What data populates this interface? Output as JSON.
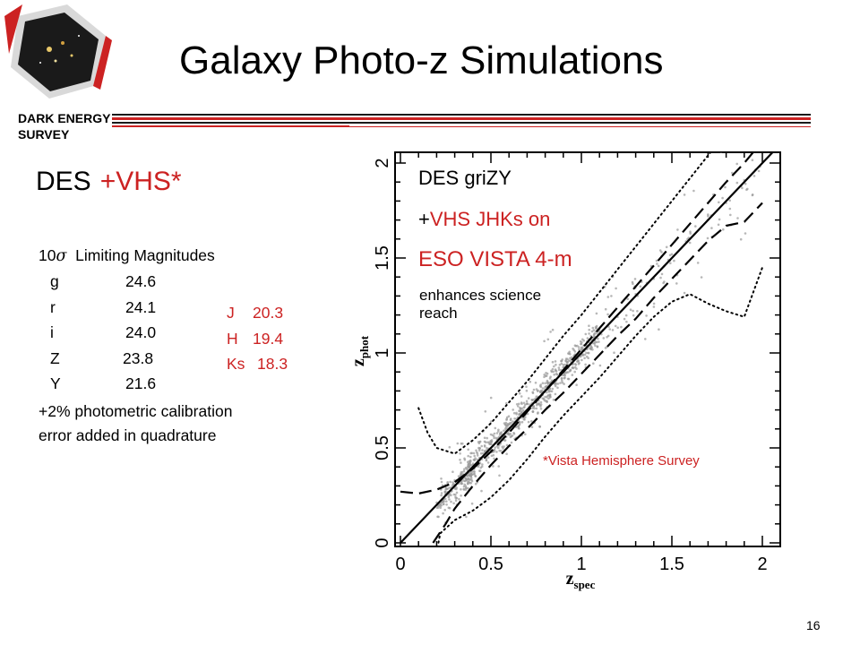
{
  "logo": {
    "line1": "DARK ENERGY",
    "line2": "SURVEY"
  },
  "title": "Galaxy Photo-z Simulations",
  "left": {
    "des_label": "DES",
    "vhs_label": "+VHS*",
    "limits_prefix": "10",
    "sigma": "σ",
    "limits_title": "Limiting Magnitudes",
    "bands": [
      {
        "band": "g",
        "mag": "24.6"
      },
      {
        "band": "r",
        "mag": "24.1"
      },
      {
        "band": "i",
        "mag": "24.0"
      },
      {
        "band": "Z",
        "mag": "23.8"
      },
      {
        "band": "Y",
        "mag": "21.6"
      }
    ],
    "ir_bands": [
      {
        "band": "J",
        "mag": "20.3"
      },
      {
        "band": "H",
        "mag": "19.4"
      },
      {
        "band": "Ks",
        "mag": "18.3"
      }
    ],
    "calib_line1": "+2% photometric calibration",
    "calib_line2": "error added in quadrature"
  },
  "annotations": {
    "line1": "DES griZY",
    "line2_plus": "+",
    "line2_rest": "VHS JHKs on",
    "line3": "ESO VISTA 4-m",
    "line4": "enhances science",
    "line5": "reach",
    "footnote": "*Vista Hemisphere Survey"
  },
  "page_number": "16",
  "colors": {
    "accent_red": "#cc2222",
    "points": "#999999"
  },
  "chart_data": {
    "type": "scatter",
    "xlabel": "z",
    "xlabel_sub": "spec",
    "ylabel": "z",
    "ylabel_sub": "phot",
    "xlim": [
      0,
      2.1
    ],
    "ylim": [
      0,
      2.1
    ],
    "xticks": [
      {
        "v": 0,
        "label": "0"
      },
      {
        "v": 0.5,
        "label": "0.5"
      },
      {
        "v": 1,
        "label": "1"
      },
      {
        "v": 1.5,
        "label": "1.5"
      },
      {
        "v": 2,
        "label": "2"
      }
    ],
    "yticks": [
      {
        "v": 0,
        "label": "0"
      },
      {
        "v": 0.5,
        "label": "0.5"
      },
      {
        "v": 1,
        "label": "1"
      },
      {
        "v": 1.5,
        "label": "1.5"
      },
      {
        "v": 2,
        "label": "2"
      }
    ],
    "lines": [
      {
        "name": "one-to-one",
        "style": "solid",
        "points": [
          [
            0,
            0
          ],
          [
            2.1,
            2.1
          ]
        ]
      },
      {
        "name": "upper-dashed",
        "style": "dashed",
        "points": [
          [
            0,
            0.27
          ],
          [
            0.1,
            0.26
          ],
          [
            0.2,
            0.28
          ],
          [
            0.3,
            0.32
          ],
          [
            0.4,
            0.39
          ],
          [
            0.5,
            0.48
          ],
          [
            0.6,
            0.58
          ],
          [
            0.7,
            0.69
          ],
          [
            0.8,
            0.8
          ],
          [
            0.9,
            0.91
          ],
          [
            1,
            1.02
          ],
          [
            1.1,
            1.13
          ],
          [
            1.2,
            1.24
          ],
          [
            1.3,
            1.35
          ],
          [
            1.4,
            1.46
          ],
          [
            1.5,
            1.57
          ],
          [
            1.6,
            1.68
          ],
          [
            1.7,
            1.79
          ],
          [
            1.8,
            1.9
          ],
          [
            1.9,
            2.0
          ],
          [
            1.97,
            2.08
          ]
        ]
      },
      {
        "name": "lower-dashed",
        "style": "dashed",
        "points": [
          [
            0.18,
            0
          ],
          [
            0.25,
            0.1
          ],
          [
            0.3,
            0.18
          ],
          [
            0.4,
            0.3
          ],
          [
            0.5,
            0.41
          ],
          [
            0.6,
            0.51
          ],
          [
            0.7,
            0.6
          ],
          [
            0.8,
            0.7
          ],
          [
            0.9,
            0.79
          ],
          [
            1,
            0.89
          ],
          [
            1.1,
            0.99
          ],
          [
            1.2,
            1.09
          ],
          [
            1.3,
            1.18
          ],
          [
            1.4,
            1.29
          ],
          [
            1.5,
            1.39
          ],
          [
            1.6,
            1.49
          ],
          [
            1.7,
            1.59
          ],
          [
            1.8,
            1.67
          ],
          [
            1.9,
            1.69
          ],
          [
            2.0,
            1.79
          ]
        ]
      },
      {
        "name": "upper-dotted",
        "style": "dotted",
        "points": [
          [
            0.1,
            0.71
          ],
          [
            0.15,
            0.58
          ],
          [
            0.2,
            0.5
          ],
          [
            0.3,
            0.47
          ],
          [
            0.4,
            0.54
          ],
          [
            0.5,
            0.63
          ],
          [
            0.6,
            0.74
          ],
          [
            0.7,
            0.85
          ],
          [
            0.8,
            0.97
          ],
          [
            0.9,
            1.09
          ],
          [
            1,
            1.2
          ],
          [
            1.1,
            1.32
          ],
          [
            1.2,
            1.44
          ],
          [
            1.3,
            1.56
          ],
          [
            1.4,
            1.68
          ],
          [
            1.5,
            1.8
          ],
          [
            1.6,
            1.92
          ],
          [
            1.7,
            2.04
          ],
          [
            1.75,
            2.1
          ]
        ]
      },
      {
        "name": "lower-dotted",
        "style": "dotted",
        "points": [
          [
            0.2,
            -0.05
          ],
          [
            0.22,
            0.05
          ],
          [
            0.3,
            0.12
          ],
          [
            0.4,
            0.17
          ],
          [
            0.5,
            0.24
          ],
          [
            0.6,
            0.33
          ],
          [
            0.7,
            0.44
          ],
          [
            0.8,
            0.56
          ],
          [
            0.9,
            0.67
          ],
          [
            1,
            0.77
          ],
          [
            1.1,
            0.87
          ],
          [
            1.2,
            0.98
          ],
          [
            1.3,
            1.09
          ],
          [
            1.4,
            1.19
          ],
          [
            1.5,
            1.27
          ],
          [
            1.6,
            1.31
          ],
          [
            1.7,
            1.26
          ],
          [
            1.8,
            1.22
          ],
          [
            1.9,
            1.19
          ],
          [
            2.0,
            1.45
          ]
        ]
      }
    ],
    "scatter_model": "photometric redshift estimates vs spectroscopic redshift, densest near z=0.3-1.1, scatter about the 1:1 line",
    "points": [
      [
        0.5,
        0.5
      ],
      [
        0.55,
        0.57
      ],
      [
        0.6,
        0.59
      ],
      [
        0.65,
        0.66
      ],
      [
        0.7,
        0.7
      ],
      [
        0.75,
        0.74
      ],
      [
        0.8,
        0.82
      ],
      [
        0.85,
        0.84
      ],
      [
        0.9,
        0.91
      ],
      [
        0.95,
        0.94
      ],
      [
        1.0,
        1.02
      ],
      [
        1.05,
        1.04
      ],
      [
        1.1,
        1.11
      ],
      [
        1.2,
        1.19
      ],
      [
        1.3,
        1.31
      ],
      [
        1.4,
        1.39
      ],
      [
        1.5,
        1.52
      ],
      [
        1.6,
        1.58
      ],
      [
        1.7,
        1.72
      ],
      [
        1.8,
        1.79
      ],
      [
        1.9,
        1.91
      ],
      [
        0.35,
        0.36
      ],
      [
        0.4,
        0.41
      ],
      [
        0.45,
        0.44
      ],
      [
        0.3,
        0.33
      ],
      [
        0.25,
        0.28
      ]
    ]
  }
}
